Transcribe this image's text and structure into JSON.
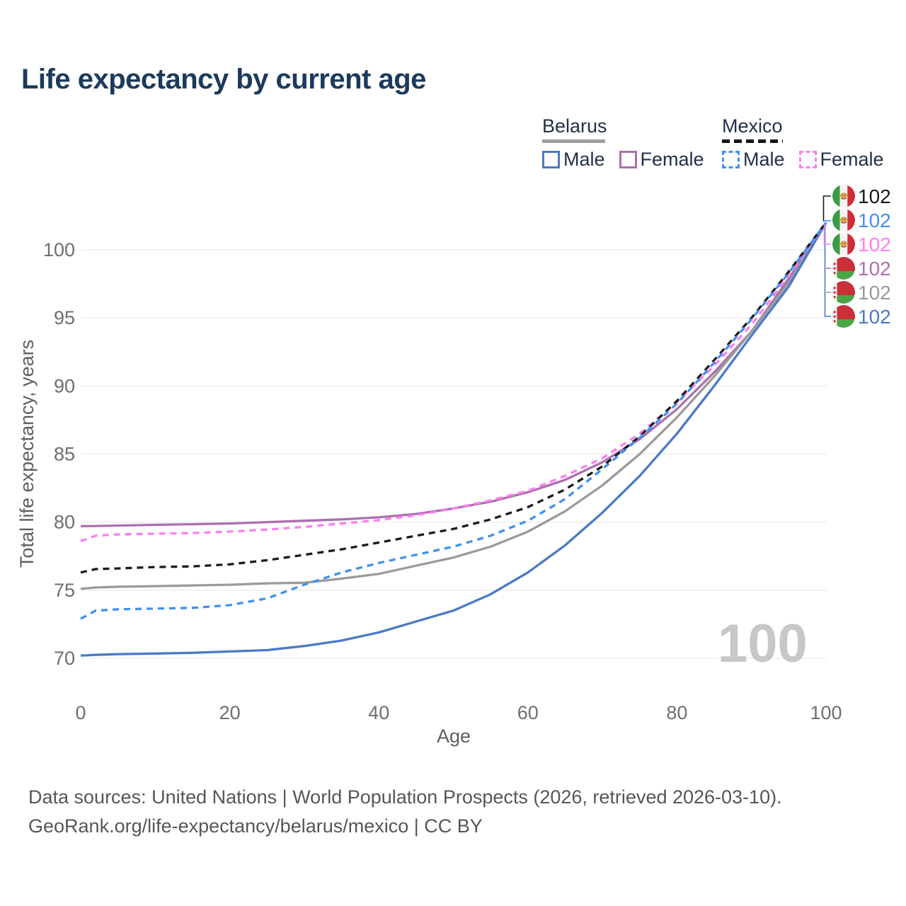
{
  "title": "Life expectancy by current age",
  "watermark": "100",
  "legend": {
    "groups": [
      {
        "country": "Belarus",
        "line_style": "solid",
        "items": [
          {
            "label": "Male",
            "color": "#4a7ac6"
          },
          {
            "label": "Female",
            "color": "#ad6fad"
          }
        ]
      },
      {
        "country": "Mexico",
        "line_style": "dashed",
        "items": [
          {
            "label": "Male",
            "color": "#4190f0"
          },
          {
            "label": "Female",
            "color": "#fd7ff2"
          }
        ]
      }
    ]
  },
  "footer": {
    "line1": "Data sources: United Nations | World Population Prospects (2026, retrieved 2026-03-10).",
    "line2": "GeoRank.org/life-expectancy/belarus/mexico | CC BY"
  },
  "chart_data": {
    "type": "line",
    "title": "Life expectancy by current age",
    "xlabel": "Age",
    "ylabel": "Total life expectancy, years",
    "xlim": [
      0,
      100
    ],
    "ylim": [
      68.5,
      103
    ],
    "xticks": [
      0,
      20,
      40,
      60,
      80,
      100
    ],
    "yticks": [
      70,
      75,
      80,
      85,
      90,
      95,
      100
    ],
    "grid": "horizontal",
    "legend_position": "top-right",
    "ages": [
      0,
      2,
      5,
      10,
      15,
      20,
      25,
      30,
      35,
      40,
      45,
      50,
      55,
      60,
      65,
      70,
      75,
      80,
      85,
      90,
      95,
      100
    ],
    "series": [
      {
        "name": "Belarus Female",
        "country": "Belarus",
        "sex": "Female",
        "color": "#ad6fad",
        "dash": "solid",
        "values": [
          79.7,
          79.72,
          79.75,
          79.8,
          79.85,
          79.9,
          80.0,
          80.1,
          80.2,
          80.35,
          80.6,
          81.0,
          81.5,
          82.2,
          83.1,
          84.4,
          86.1,
          88.3,
          91.0,
          94.0,
          97.9,
          102
        ]
      },
      {
        "name": "Belarus (both sexes)",
        "country": "Belarus",
        "sex": "Both",
        "color": "#9a9a9a",
        "dash": "solid",
        "values": [
          75.1,
          75.2,
          75.25,
          75.3,
          75.35,
          75.4,
          75.5,
          75.55,
          75.85,
          76.2,
          76.8,
          77.4,
          78.2,
          79.3,
          80.8,
          82.7,
          85.0,
          87.7,
          90.7,
          94.0,
          97.6,
          102
        ]
      },
      {
        "name": "Belarus Male",
        "country": "Belarus",
        "sex": "Male",
        "color": "#4a7ac6",
        "dash": "solid",
        "values": [
          70.2,
          70.25,
          70.3,
          70.35,
          70.4,
          70.5,
          70.6,
          70.9,
          71.3,
          71.9,
          72.7,
          73.5,
          74.7,
          76.3,
          78.3,
          80.7,
          83.4,
          86.5,
          90.0,
          93.7,
          97.3,
          102
        ]
      },
      {
        "name": "Mexico Female",
        "country": "Mexico",
        "sex": "Female",
        "color": "#fd7ff2",
        "dash": "dashed",
        "values": [
          78.6,
          79.0,
          79.1,
          79.15,
          79.2,
          79.3,
          79.45,
          79.65,
          79.9,
          80.15,
          80.5,
          81.0,
          81.6,
          82.3,
          83.4,
          84.7,
          86.5,
          88.8,
          91.5,
          94.5,
          98.1,
          102
        ]
      },
      {
        "name": "Mexico (both sexes)",
        "country": "Mexico",
        "sex": "Both",
        "color": "#1a1a1a",
        "dash": "dashed",
        "values": [
          76.3,
          76.55,
          76.6,
          76.7,
          76.75,
          76.9,
          77.2,
          77.6,
          78.0,
          78.5,
          79.0,
          79.5,
          80.2,
          81.1,
          82.4,
          84.1,
          86.3,
          88.9,
          91.9,
          95.0,
          98.4,
          102
        ]
      },
      {
        "name": "Mexico Male",
        "country": "Mexico",
        "sex": "Male",
        "color": "#4190f0",
        "dash": "dashed",
        "values": [
          72.9,
          73.5,
          73.6,
          73.65,
          73.7,
          73.9,
          74.4,
          75.4,
          76.3,
          77.0,
          77.6,
          78.2,
          79.0,
          80.1,
          81.7,
          83.9,
          86.2,
          88.7,
          91.7,
          94.9,
          98.3,
          102
        ]
      }
    ],
    "end_labels": [
      {
        "value": "102",
        "flag": "mexico",
        "color": "#1a1a1a"
      },
      {
        "value": "102",
        "flag": "mexico",
        "color": "#4190f0"
      },
      {
        "value": "102",
        "flag": "mexico",
        "color": "#fd7ff2"
      },
      {
        "value": "102",
        "flag": "belarus",
        "color": "#ad6fad"
      },
      {
        "value": "102",
        "flag": "belarus",
        "color": "#9a9a9a"
      },
      {
        "value": "102",
        "flag": "belarus",
        "color": "#4a7ac6"
      }
    ]
  }
}
